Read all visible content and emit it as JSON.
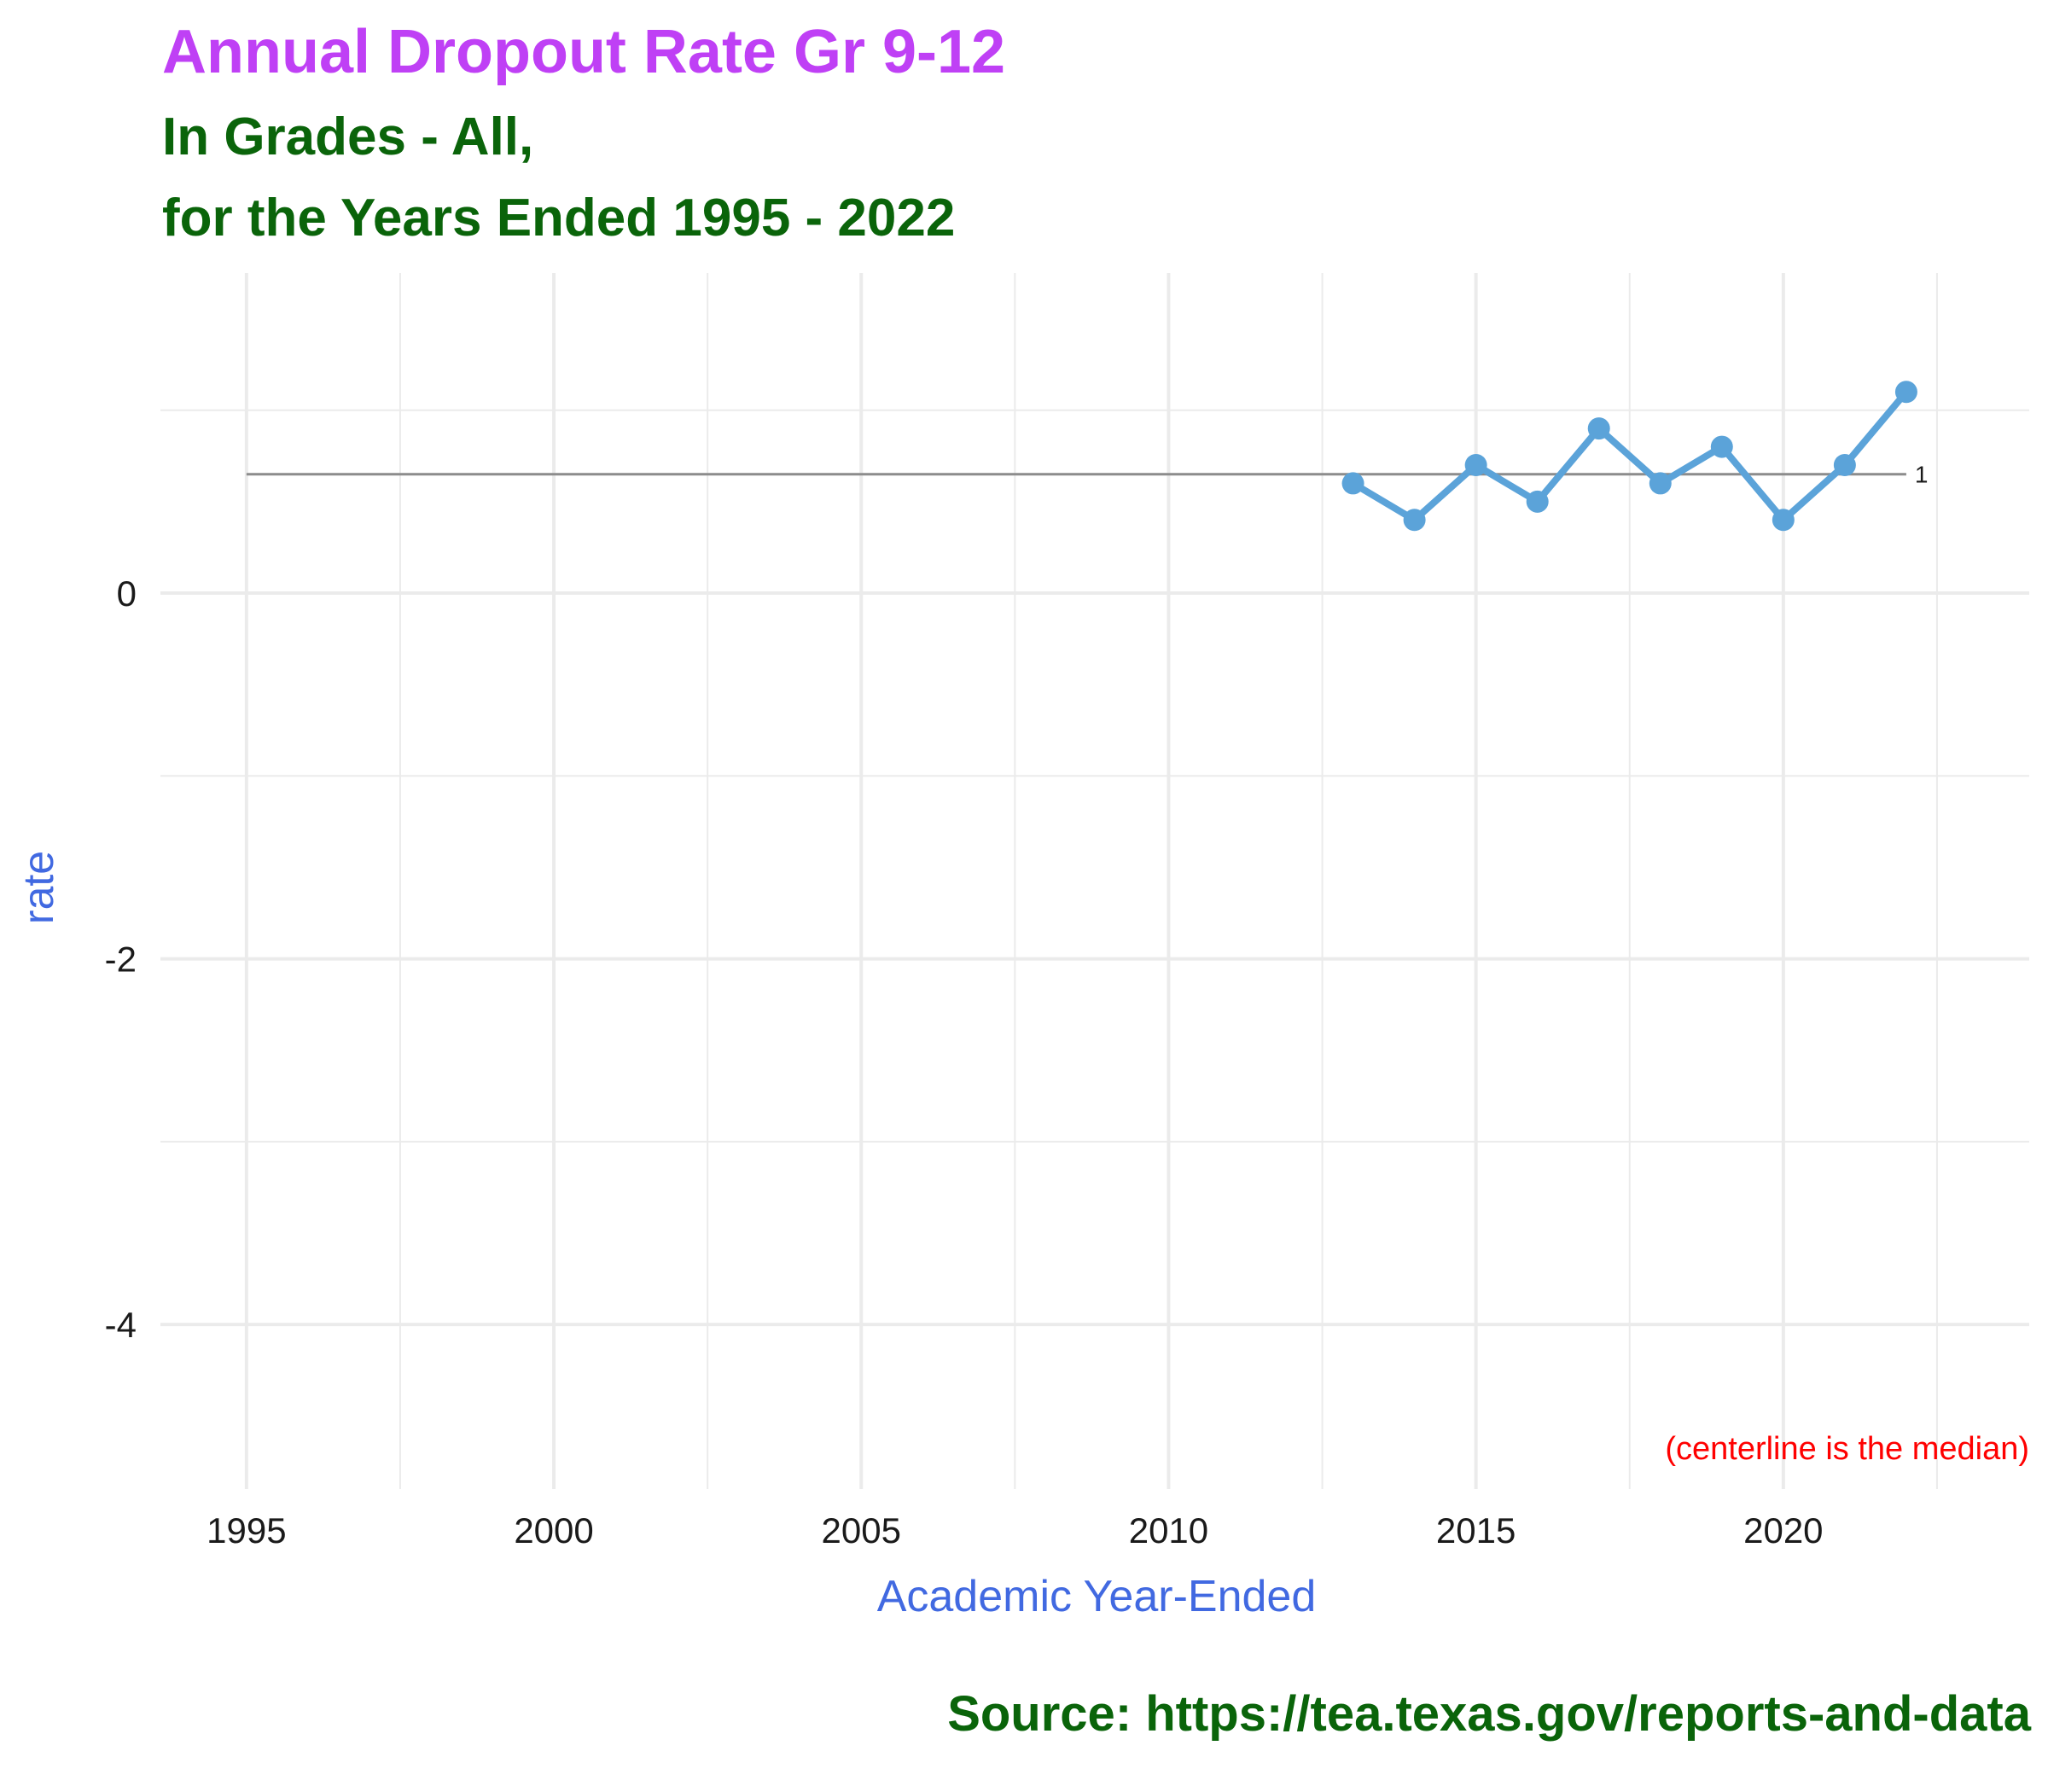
{
  "title": "Annual Dropout Rate Gr 9-12",
  "subtitle_line1": "In Grades - All,",
  "subtitle_line2": "for the Years Ended 1995 - 2022",
  "caption": "Source:  https://tea.texas.gov/reports-and-data",
  "colors": {
    "title": "#bf40f5",
    "subtitle": "#0a640a",
    "axis_label": "#4169e1",
    "series": "#5ba3d9",
    "centerline": "#8c8c8c",
    "annotation": "#ff0000",
    "grid": "#ebebeb"
  },
  "chart_data": {
    "type": "line",
    "xlabel": "Academic Year-Ended",
    "ylabel": "rate",
    "xlim": [
      1993.6,
      2024.0
    ],
    "ylim": [
      -4.9,
      1.75
    ],
    "x_ticks": [
      1995,
      2000,
      2005,
      2010,
      2015,
      2020
    ],
    "y_ticks": [
      0,
      -2,
      -4
    ],
    "x_ticklabels": [
      "1995",
      "2000",
      "2005",
      "2010",
      "2015",
      "2020"
    ],
    "y_ticklabels": [
      "0",
      "-2",
      "-4"
    ],
    "grid": true,
    "series": [
      {
        "x": [
          2013,
          2014,
          2015,
          2016,
          2017,
          2018,
          2019,
          2020,
          2021,
          2022
        ],
        "y": [
          0.6,
          0.4,
          0.7,
          0.5,
          0.9,
          0.6,
          0.8,
          0.4,
          0.7,
          1.1
        ]
      }
    ],
    "centerline": {
      "value": 0.65,
      "x_start": 1995,
      "x_end": 2022,
      "label": "1"
    },
    "annotation": "(centerline is the median)"
  }
}
